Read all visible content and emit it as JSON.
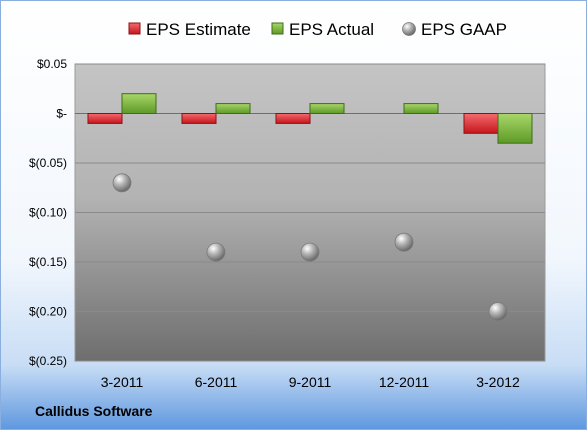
{
  "colors": {
    "estimate": "#e8262b",
    "actual": "#7db83f",
    "gaap": "#9a9a9a",
    "accent": "#5f98df"
  },
  "company": "Callidus Software",
  "chart_data": {
    "type": "bar",
    "categories": [
      "3-2011",
      "6-2011",
      "9-2011",
      "12-2011",
      "3-2012"
    ],
    "series": [
      {
        "name": "EPS Estimate",
        "kind": "bar",
        "values": [
          -0.01,
          -0.01,
          -0.01,
          null,
          -0.02
        ]
      },
      {
        "name": "EPS Actual",
        "kind": "bar",
        "values": [
          0.02,
          0.01,
          0.01,
          0.01,
          -0.03
        ]
      },
      {
        "name": "EPS GAAP",
        "kind": "scatter",
        "values": [
          -0.07,
          -0.14,
          -0.14,
          -0.13,
          -0.2
        ]
      }
    ],
    "y_ticks": [
      0.05,
      0,
      -0.05,
      -0.1,
      -0.15,
      -0.2,
      -0.25
    ],
    "y_tick_labels": [
      "$0.05",
      "$-",
      "$(0.05)",
      "$(0.10)",
      "$(0.15)",
      "$(0.20)",
      "$(0.25)"
    ],
    "ylim": [
      -0.25,
      0.05
    ],
    "grid": true,
    "legend_position": "top"
  }
}
